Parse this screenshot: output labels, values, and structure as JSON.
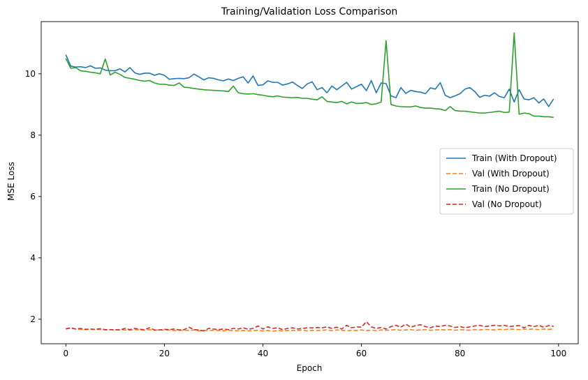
{
  "chart_data": {
    "type": "line",
    "title": "Training/Validation Loss Comparison",
    "xlabel": "Epoch",
    "ylabel": "MSE Loss",
    "xlim": [
      -5,
      104
    ],
    "ylim": [
      1.2,
      11.7
    ],
    "xticks": [
      0,
      20,
      40,
      60,
      80,
      100
    ],
    "yticks": [
      2,
      4,
      6,
      8,
      10
    ],
    "grid": false,
    "legend": "center-right",
    "x": [
      0,
      1,
      2,
      3,
      4,
      5,
      6,
      7,
      8,
      9,
      10,
      11,
      12,
      13,
      14,
      15,
      16,
      17,
      18,
      19,
      20,
      21,
      22,
      23,
      24,
      25,
      26,
      27,
      28,
      29,
      30,
      31,
      32,
      33,
      34,
      35,
      36,
      37,
      38,
      39,
      40,
      41,
      42,
      43,
      44,
      45,
      46,
      47,
      48,
      49,
      50,
      51,
      52,
      53,
      54,
      55,
      56,
      57,
      58,
      59,
      60,
      61,
      62,
      63,
      64,
      65,
      66,
      67,
      68,
      69,
      70,
      71,
      72,
      73,
      74,
      75,
      76,
      77,
      78,
      79,
      80,
      81,
      82,
      83,
      84,
      85,
      86,
      87,
      88,
      89,
      90,
      91,
      92,
      93,
      94,
      95,
      96,
      97,
      98,
      99
    ],
    "series": [
      {
        "name": "Train (With Dropout)",
        "color": "#1f77b4",
        "dash": "solid",
        "values": [
          10.62,
          10.25,
          10.22,
          10.23,
          10.2,
          10.26,
          10.18,
          10.19,
          10.12,
          10.1,
          10.1,
          10.16,
          10.06,
          10.2,
          10.03,
          9.98,
          10.02,
          10.02,
          9.95,
          10.0,
          9.95,
          9.82,
          9.84,
          9.85,
          9.84,
          9.87,
          9.99,
          9.9,
          9.8,
          9.87,
          9.85,
          9.8,
          9.77,
          9.83,
          9.78,
          9.85,
          9.9,
          9.7,
          9.93,
          9.62,
          9.64,
          9.77,
          9.72,
          9.72,
          9.63,
          9.67,
          9.73,
          9.62,
          9.52,
          9.67,
          9.74,
          9.48,
          9.55,
          9.38,
          9.6,
          9.48,
          9.6,
          9.72,
          9.5,
          9.58,
          9.66,
          9.45,
          9.78,
          9.38,
          9.7,
          9.68,
          9.28,
          9.22,
          9.55,
          9.36,
          9.46,
          9.42,
          9.4,
          9.35,
          9.54,
          9.5,
          9.71,
          9.3,
          9.22,
          9.28,
          9.35,
          9.5,
          9.55,
          9.42,
          9.23,
          9.3,
          9.27,
          9.38,
          9.26,
          9.22,
          9.5,
          9.08,
          9.48,
          9.18,
          9.15,
          9.22,
          9.05,
          9.18,
          8.93,
          9.18
        ]
      },
      {
        "name": "Val (With Dropout)",
        "color": "#ff7f0e",
        "dash": "dashed",
        "values": [
          1.7,
          1.7,
          1.68,
          1.67,
          1.68,
          1.67,
          1.66,
          1.67,
          1.65,
          1.66,
          1.64,
          1.66,
          1.65,
          1.64,
          1.66,
          1.65,
          1.64,
          1.66,
          1.64,
          1.65,
          1.64,
          1.65,
          1.63,
          1.64,
          1.64,
          1.63,
          1.65,
          1.62,
          1.64,
          1.63,
          1.64,
          1.63,
          1.62,
          1.64,
          1.63,
          1.62,
          1.63,
          1.62,
          1.63,
          1.64,
          1.62,
          1.63,
          1.61,
          1.63,
          1.62,
          1.63,
          1.64,
          1.63,
          1.65,
          1.62,
          1.64,
          1.63,
          1.64,
          1.65,
          1.63,
          1.65,
          1.64,
          1.62,
          1.64,
          1.63,
          1.65,
          1.63,
          1.64,
          1.63,
          1.65,
          1.64,
          1.65,
          1.66,
          1.64,
          1.65,
          1.66,
          1.64,
          1.65,
          1.66,
          1.64,
          1.65,
          1.66,
          1.65,
          1.66,
          1.64,
          1.66,
          1.65,
          1.64,
          1.66,
          1.65,
          1.67,
          1.66,
          1.65,
          1.67,
          1.66,
          1.68,
          1.67,
          1.66,
          1.68,
          1.67,
          1.68,
          1.66,
          1.68,
          1.67,
          1.68
        ]
      },
      {
        "name": "Train (No Dropout)",
        "color": "#2ca02c",
        "dash": "solid",
        "values": [
          10.5,
          10.18,
          10.2,
          10.1,
          10.08,
          10.05,
          10.03,
          10.0,
          10.48,
          9.96,
          10.05,
          9.98,
          9.88,
          9.85,
          9.82,
          9.78,
          9.76,
          9.78,
          9.7,
          9.66,
          9.66,
          9.63,
          9.62,
          9.7,
          9.56,
          9.55,
          9.52,
          9.5,
          9.48,
          9.47,
          9.46,
          9.45,
          9.44,
          9.42,
          9.6,
          9.38,
          9.35,
          9.34,
          9.35,
          9.32,
          9.3,
          9.27,
          9.25,
          9.28,
          9.24,
          9.23,
          9.22,
          9.23,
          9.2,
          9.2,
          9.17,
          9.15,
          9.25,
          9.1,
          9.08,
          9.06,
          9.1,
          9.02,
          9.08,
          9.03,
          9.04,
          9.06,
          9.0,
          9.02,
          9.08,
          11.08,
          9.0,
          8.95,
          8.93,
          8.92,
          8.92,
          8.95,
          8.9,
          8.88,
          8.88,
          8.86,
          8.85,
          8.8,
          8.93,
          8.8,
          8.78,
          8.78,
          8.76,
          8.74,
          8.72,
          8.72,
          8.74,
          8.76,
          8.78,
          8.74,
          8.75,
          11.33,
          8.68,
          8.72,
          8.7,
          8.62,
          8.62,
          8.6,
          8.6,
          8.58
        ]
      },
      {
        "name": "Val (No Dropout)",
        "color": "#d62728",
        "dash": "dashed",
        "values": [
          1.68,
          1.72,
          1.68,
          1.7,
          1.66,
          1.68,
          1.67,
          1.69,
          1.66,
          1.66,
          1.66,
          1.65,
          1.7,
          1.66,
          1.7,
          1.67,
          1.66,
          1.72,
          1.65,
          1.65,
          1.67,
          1.66,
          1.68,
          1.65,
          1.66,
          1.74,
          1.66,
          1.65,
          1.62,
          1.7,
          1.68,
          1.66,
          1.68,
          1.66,
          1.7,
          1.68,
          1.72,
          1.67,
          1.7,
          1.78,
          1.68,
          1.75,
          1.7,
          1.72,
          1.66,
          1.7,
          1.72,
          1.68,
          1.7,
          1.72,
          1.72,
          1.73,
          1.72,
          1.75,
          1.7,
          1.74,
          1.68,
          1.8,
          1.72,
          1.75,
          1.74,
          1.92,
          1.75,
          1.7,
          1.73,
          1.68,
          1.76,
          1.8,
          1.74,
          1.84,
          1.74,
          1.79,
          1.82,
          1.76,
          1.72,
          1.78,
          1.76,
          1.8,
          1.78,
          1.73,
          1.76,
          1.72,
          1.75,
          1.78,
          1.8,
          1.76,
          1.78,
          1.8,
          1.78,
          1.8,
          1.76,
          1.78,
          1.79,
          1.72,
          1.8,
          1.76,
          1.8,
          1.74,
          1.79,
          1.77
        ]
      }
    ]
  }
}
